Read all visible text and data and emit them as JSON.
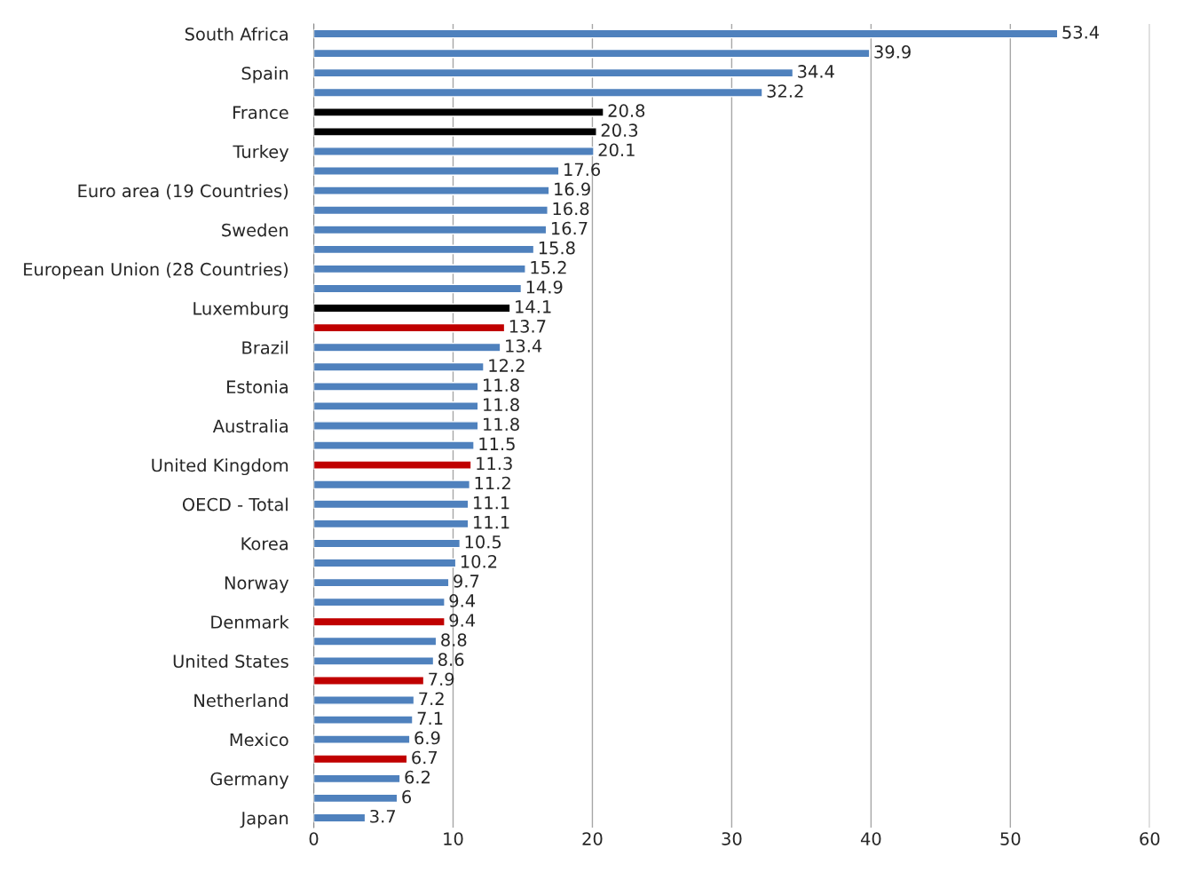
{
  "chart_data": {
    "type": "bar",
    "orientation": "horizontal",
    "categories": [
      "South Africa",
      null,
      "Spain",
      null,
      "France",
      null,
      "Turkey",
      null,
      "Euro area (19 Countries)",
      null,
      "Sweden",
      null,
      "European Union (28 Countries)",
      null,
      "Luxemburg",
      null,
      "Brazil",
      null,
      "Estonia",
      null,
      "Australia",
      null,
      "United Kingdom",
      null,
      "OECD - Total",
      null,
      "Korea",
      null,
      "Norway",
      null,
      "Denmark",
      null,
      "United States",
      null,
      "Netherland",
      null,
      "Mexico",
      null,
      "Germany",
      null,
      "Japan"
    ],
    "values": [
      53.4,
      39.9,
      34.4,
      32.2,
      20.8,
      20.3,
      20.1,
      17.6,
      16.9,
      16.8,
      16.7,
      15.8,
      15.2,
      14.9,
      14.1,
      13.7,
      13.4,
      12.2,
      11.8,
      11.8,
      11.8,
      11.5,
      11.3,
      11.2,
      11.1,
      11.1,
      10.5,
      10.2,
      9.7,
      9.4,
      9.4,
      8.8,
      8.6,
      7.9,
      7.2,
      7.1,
      6.9,
      6.7,
      6.2,
      6,
      3.7
    ],
    "colors": [
      "#4f81bd",
      "#4f81bd",
      "#4f81bd",
      "#4f81bd",
      "#000000",
      "#000000",
      "#4f81bd",
      "#4f81bd",
      "#4f81bd",
      "#4f81bd",
      "#4f81bd",
      "#4f81bd",
      "#4f81bd",
      "#4f81bd",
      "#000000",
      "#c00000",
      "#4f81bd",
      "#4f81bd",
      "#4f81bd",
      "#4f81bd",
      "#4f81bd",
      "#4f81bd",
      "#c00000",
      "#4f81bd",
      "#4f81bd",
      "#4f81bd",
      "#4f81bd",
      "#4f81bd",
      "#4f81bd",
      "#4f81bd",
      "#c00000",
      "#4f81bd",
      "#4f81bd",
      "#c00000",
      "#4f81bd",
      "#4f81bd",
      "#4f81bd",
      "#c00000",
      "#4f81bd",
      "#4f81bd",
      "#4f81bd"
    ],
    "xlim": [
      0,
      60
    ],
    "xticks": [
      0,
      10,
      20,
      30,
      40,
      50,
      60
    ],
    "grid": "x",
    "data_labels": true
  }
}
